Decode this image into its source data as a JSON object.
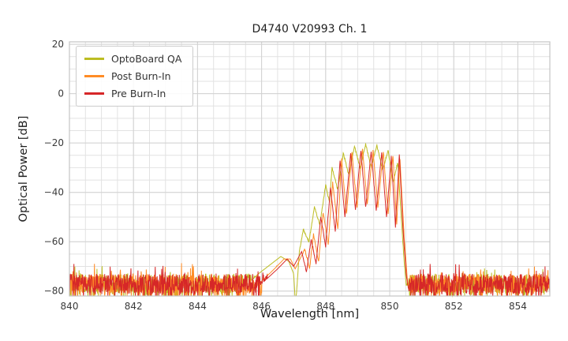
{
  "chart_data": {
    "type": "line",
    "title": "D4740 V20993 Ch. 1",
    "xlabel": "Wavelength [nm]",
    "ylabel": "Optical Power [dB]",
    "xlim": [
      840,
      855
    ],
    "ylim": [
      -82,
      21
    ],
    "xticks": [
      840,
      842,
      844,
      846,
      848,
      850,
      852,
      854
    ],
    "yticks": [
      20,
      0,
      -20,
      -40,
      -60,
      -80
    ],
    "x_minor_step": 0.5,
    "y_minor_step": 5,
    "grid": true,
    "legend_position": "upper left",
    "noise_floor_dB": -77,
    "series": [
      {
        "name": "OptoBoard QA",
        "color": "#bcbd22",
        "signal_range": [
          846.98,
          850.52
        ],
        "anchors": [
          [
            845.5,
            -78
          ],
          [
            845.9,
            -73
          ],
          [
            846.3,
            -69
          ],
          [
            846.6,
            -66
          ],
          [
            846.85,
            -68
          ],
          [
            847.0,
            -73
          ],
          [
            847.06,
            -86
          ],
          [
            847.18,
            -64
          ],
          [
            847.3,
            -55
          ],
          [
            847.48,
            -60
          ],
          [
            847.65,
            -46
          ],
          [
            847.82,
            -53
          ],
          [
            848.0,
            -37
          ],
          [
            848.12,
            -44
          ],
          [
            848.2,
            -30
          ],
          [
            848.38,
            -39
          ],
          [
            848.55,
            -24
          ],
          [
            848.72,
            -33
          ],
          [
            848.9,
            -21.5
          ],
          [
            849.08,
            -30
          ],
          [
            849.25,
            -20.5
          ],
          [
            849.42,
            -30
          ],
          [
            849.6,
            -21
          ],
          [
            849.78,
            -31
          ],
          [
            849.95,
            -23
          ],
          [
            850.1,
            -36
          ],
          [
            850.25,
            -28
          ],
          [
            850.35,
            -48
          ],
          [
            850.45,
            -68
          ],
          [
            850.52,
            -78
          ]
        ]
      },
      {
        "name": "Post Burn-In",
        "color": "#ff8c26",
        "signal_range": [
          847.28,
          850.62
        ],
        "anchors": [
          [
            846.0,
            -76
          ],
          [
            846.4,
            -71
          ],
          [
            846.7,
            -67
          ],
          [
            846.9,
            -67
          ],
          [
            847.05,
            -71
          ],
          [
            847.2,
            -67
          ],
          [
            847.35,
            -63
          ],
          [
            847.5,
            -71
          ],
          [
            847.62,
            -57
          ],
          [
            847.78,
            -68
          ],
          [
            847.92,
            -48
          ],
          [
            848.08,
            -61
          ],
          [
            848.22,
            -36
          ],
          [
            848.38,
            -55
          ],
          [
            848.5,
            -26.5
          ],
          [
            848.65,
            -49
          ],
          [
            848.82,
            -23.5
          ],
          [
            848.98,
            -46
          ],
          [
            849.15,
            -22.5
          ],
          [
            849.3,
            -45
          ],
          [
            849.48,
            -23
          ],
          [
            849.63,
            -46
          ],
          [
            849.8,
            -23.5
          ],
          [
            849.95,
            -49
          ],
          [
            850.1,
            -25
          ],
          [
            850.22,
            -53
          ],
          [
            850.32,
            -26.5
          ],
          [
            850.45,
            -58
          ],
          [
            850.55,
            -75
          ],
          [
            850.62,
            -80
          ]
        ]
      },
      {
        "name": "Pre Burn-In",
        "color": "#d62728",
        "signal_range": [
          847.3,
          850.6
        ],
        "anchors": [
          [
            846.0,
            -77
          ],
          [
            846.5,
            -71
          ],
          [
            846.8,
            -67
          ],
          [
            847.0,
            -70
          ],
          [
            847.25,
            -64
          ],
          [
            847.4,
            -72
          ],
          [
            847.55,
            -59
          ],
          [
            847.7,
            -69
          ],
          [
            847.85,
            -50
          ],
          [
            848.0,
            -62
          ],
          [
            848.15,
            -38
          ],
          [
            848.3,
            -56
          ],
          [
            848.45,
            -27
          ],
          [
            848.6,
            -50
          ],
          [
            848.78,
            -24
          ],
          [
            848.93,
            -47
          ],
          [
            849.1,
            -23
          ],
          [
            849.25,
            -46
          ],
          [
            849.42,
            -23.5
          ],
          [
            849.58,
            -47
          ],
          [
            849.75,
            -24
          ],
          [
            849.9,
            -50
          ],
          [
            850.05,
            -25.5
          ],
          [
            850.18,
            -54
          ],
          [
            850.3,
            -24.5
          ],
          [
            850.42,
            -56
          ],
          [
            850.52,
            -74
          ],
          [
            850.6,
            -80
          ]
        ]
      }
    ]
  }
}
